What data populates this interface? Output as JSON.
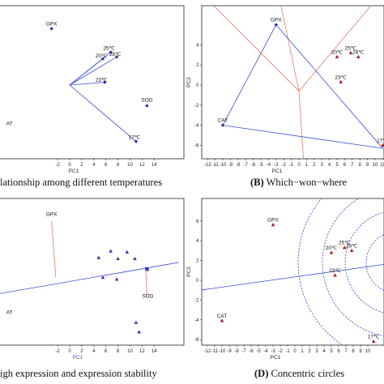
{
  "chart_data": [
    {
      "type": "scatter",
      "panel": "A",
      "caption": "lationship among different temperatures",
      "xlabel": "PC1",
      "xticks": [
        "-2",
        "0",
        "2",
        "4",
        "6",
        "8",
        "10",
        "12",
        "14"
      ],
      "points": [
        {
          "label": "GPX",
          "x": -3.0,
          "y": 6.0,
          "marker": "diamond"
        },
        {
          "label": "25℃",
          "x": 6.8,
          "y": 3.5,
          "marker": "diamond"
        },
        {
          "label": "20℃",
          "x": 5.5,
          "y": 2.8,
          "marker": "diamond"
        },
        {
          "label": "28℃",
          "x": 7.8,
          "y": 3.0,
          "marker": "diamond"
        },
        {
          "label": "23℃",
          "x": 5.8,
          "y": 0.3,
          "marker": "diamond"
        },
        {
          "label": "SOD",
          "x": 12.8,
          "y": -2.2,
          "marker": "diamond"
        },
        {
          "label": "17℃",
          "x": 11.0,
          "y": -6.0,
          "marker": "diamond"
        },
        {
          "label": "AT",
          "x": -10.0,
          "y": -4.0,
          "marker": "none"
        }
      ],
      "vectors_from_origin": [
        "25℃",
        "20℃",
        "28℃",
        "23℃",
        "17℃"
      ]
    },
    {
      "type": "scatter",
      "panel": "B",
      "caption_letter": "(B)",
      "caption": " Which−won−where",
      "xlabel": "PC1",
      "ylabel": "PC2",
      "xticks": [
        "-12",
        "-11",
        "-10",
        "-9",
        "-8",
        "-7",
        "-6",
        "-5",
        "-4",
        "-3",
        "-2",
        "-1",
        "0",
        "1",
        "2",
        "3",
        "4",
        "5",
        "6",
        "7",
        "8",
        "9",
        "10",
        "11"
      ],
      "yticks": [
        "4",
        "2",
        "0",
        "-2",
        "-4",
        "-6",
        "-8"
      ],
      "points": [
        {
          "label": "GPX",
          "x": -3.0,
          "y": 6.0,
          "marker": "diamond"
        },
        {
          "label": "20℃",
          "x": 5.0,
          "y": 2.8,
          "marker": "triangle"
        },
        {
          "label": "25℃",
          "x": 6.8,
          "y": 3.2,
          "marker": "triangle"
        },
        {
          "label": "28℃",
          "x": 7.8,
          "y": 2.8,
          "marker": "triangle"
        },
        {
          "label": "23℃",
          "x": 5.5,
          "y": 0.3,
          "marker": "triangle"
        },
        {
          "label": "CAT",
          "x": -10.0,
          "y": -4.0,
          "marker": "diamond"
        },
        {
          "label": "17℃",
          "x": 11.0,
          "y": -6.0,
          "marker": "triangle"
        }
      ]
    },
    {
      "type": "scatter",
      "panel": "C",
      "caption": "igh expression and expression stability",
      "xlabel": "PC1",
      "xticks": [
        "-2",
        "0",
        "2",
        "4",
        "6",
        "8",
        "10",
        "12",
        "14"
      ],
      "points": [
        {
          "label": "GPX",
          "x": -3.0,
          "y": 6.0,
          "marker": "none"
        },
        {
          "label": "SOD",
          "x": 12.8,
          "y": -2.2,
          "marker": "none"
        },
        {
          "label": "AT",
          "x": -10.0,
          "y": -4.0,
          "marker": "none"
        }
      ],
      "triangles": [
        {
          "x": 4.8,
          "y": 1.7
        },
        {
          "x": 6.8,
          "y": 2.4
        },
        {
          "x": 8.0,
          "y": 1.6
        },
        {
          "x": 9.5,
          "y": 2.3
        },
        {
          "x": 10.8,
          "y": 1.6
        },
        {
          "x": 5.5,
          "y": -0.4
        },
        {
          "x": 7.8,
          "y": -0.6
        },
        {
          "x": 11.0,
          "y": -5.2
        },
        {
          "x": 11.5,
          "y": -6.2
        }
      ]
    },
    {
      "type": "scatter",
      "panel": "D",
      "caption_letter": "(D)",
      "caption": " Concentric circles",
      "xlabel": "PC1",
      "ylabel": "PC2",
      "xticks": [
        "-12",
        "-11",
        "-10",
        "-9",
        "-8",
        "-7",
        "-6",
        "-5",
        "-4",
        "-3",
        "-2",
        "-1",
        "0",
        "1",
        "2",
        "3",
        "4",
        "5",
        "6",
        "7",
        "8",
        "9",
        "10"
      ],
      "yticks": [
        "6",
        "4",
        "2",
        "0",
        "-2",
        "-4",
        "-6",
        "-8"
      ],
      "points": [
        {
          "label": "GPX",
          "x": -3.0,
          "y": 5.6,
          "marker": "triangle"
        },
        {
          "label": "20℃",
          "x": 5.0,
          "y": 2.8,
          "marker": "triangle"
        },
        {
          "label": "25℃",
          "x": 6.8,
          "y": 3.3,
          "marker": "triangle"
        },
        {
          "label": "28℃",
          "x": 7.8,
          "y": 3.0,
          "marker": "triangle"
        },
        {
          "label": "23℃",
          "x": 5.5,
          "y": 0.5,
          "marker": "triangle"
        },
        {
          "label": "CAT",
          "x": -10.0,
          "y": -4.1,
          "marker": "triangle"
        },
        {
          "label": "17℃",
          "x": 10.8,
          "y": -6.2,
          "marker": "triangle"
        }
      ]
    }
  ]
}
